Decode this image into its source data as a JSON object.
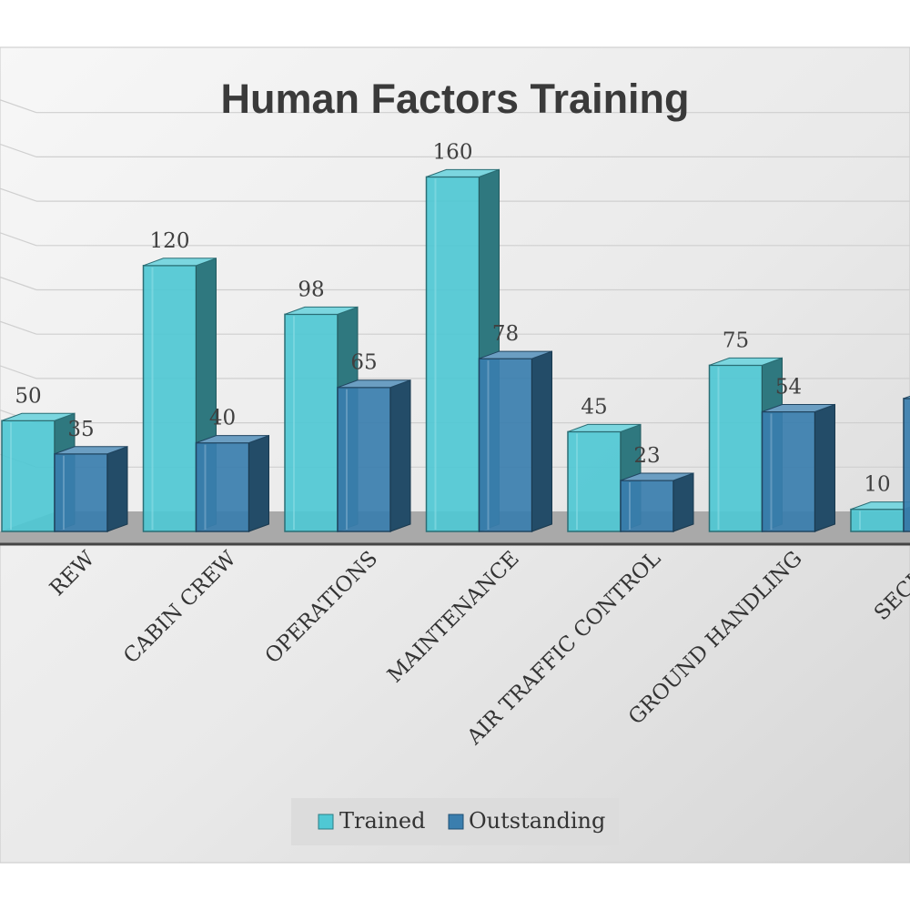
{
  "chart_data": {
    "type": "bar",
    "title": "Human Factors Training",
    "xlabel": "",
    "ylabel": "",
    "ylim": [
      0,
      180
    ],
    "grid": true,
    "legend_position": "bottom",
    "categories": [
      "FLIGHT CREW",
      "CABIN CREW",
      "OPERATIONS",
      "MAINTENANCE",
      "AIR TRAFFIC CONTROL",
      "GROUND HANDLING",
      "SECURITY"
    ],
    "category_labels_visible": [
      "REW",
      "CABIN CREW",
      "OPERATIONS",
      "MAINTENANCE",
      "AIR TRAFFIC CONTROL",
      "GROUND HANDLING",
      "SECURI"
    ],
    "series": [
      {
        "name": "Trained",
        "values": [
          50,
          120,
          98,
          160,
          45,
          75,
          10
        ],
        "labels": [
          "50",
          "120",
          "98",
          "160",
          "45",
          "75",
          "10"
        ],
        "color": "#4fc8d4"
      },
      {
        "name": "Outstanding",
        "values": [
          35,
          40,
          65,
          78,
          23,
          54,
          60
        ],
        "labels": [
          "35",
          "40",
          "65",
          "78",
          "23",
          "54",
          ""
        ],
        "color": "#3a7eae"
      }
    ]
  }
}
